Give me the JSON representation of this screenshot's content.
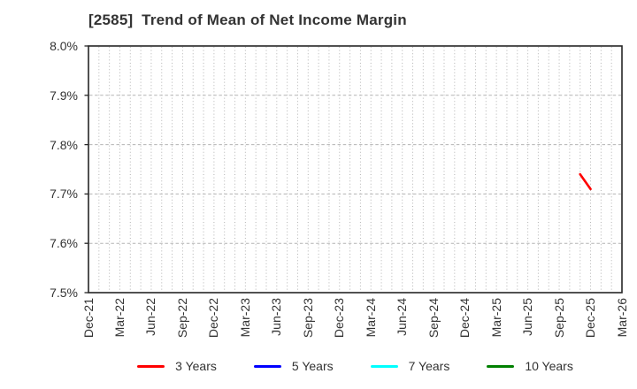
{
  "chart": {
    "title": "[2585]  Trend of Mean of Net Income Margin"
  },
  "colors": {
    "title_text": "#333333",
    "axis_border": "#262626",
    "tick_text": "#333333",
    "grid": "#b3b3b3",
    "background": "#ffffff",
    "series_red": "#ff0000",
    "series_blue": "#0000ff",
    "series_cyan": "#00ffff",
    "series_green": "#008000"
  },
  "chart_data": {
    "type": "line",
    "title": "[2585]  Trend of Mean of Net Income Margin",
    "xlabel": "",
    "ylabel": "",
    "ylim": [
      7.5,
      8.0
    ],
    "y_ticks": [
      {
        "value": 8.0,
        "label": "8.0%"
      },
      {
        "value": 7.9,
        "label": "7.9%"
      },
      {
        "value": 7.8,
        "label": "7.8%"
      },
      {
        "value": 7.7,
        "label": "7.7%"
      },
      {
        "value": 7.6,
        "label": "7.6%"
      },
      {
        "value": 7.5,
        "label": "7.5%"
      }
    ],
    "x_axis": {
      "unit": "month",
      "months_total": 51,
      "tick_labels": [
        {
          "month_index": 0,
          "label": "Dec-21"
        },
        {
          "month_index": 3,
          "label": "Mar-22"
        },
        {
          "month_index": 6,
          "label": "Jun-22"
        },
        {
          "month_index": 9,
          "label": "Sep-22"
        },
        {
          "month_index": 12,
          "label": "Dec-22"
        },
        {
          "month_index": 15,
          "label": "Mar-23"
        },
        {
          "month_index": 18,
          "label": "Jun-23"
        },
        {
          "month_index": 21,
          "label": "Sep-23"
        },
        {
          "month_index": 24,
          "label": "Dec-23"
        },
        {
          "month_index": 27,
          "label": "Mar-24"
        },
        {
          "month_index": 30,
          "label": "Jun-24"
        },
        {
          "month_index": 33,
          "label": "Sep-24"
        },
        {
          "month_index": 36,
          "label": "Dec-24"
        },
        {
          "month_index": 39,
          "label": "Mar-25"
        },
        {
          "month_index": 42,
          "label": "Jun-25"
        },
        {
          "month_index": 45,
          "label": "Sep-25"
        },
        {
          "month_index": 48,
          "label": "Dec-25"
        },
        {
          "month_index": 51,
          "label": "Mar-26"
        }
      ]
    },
    "grid": {
      "vertical": "dotted-monthly",
      "horizontal": "dashed-per-0.1"
    },
    "legend_position": "bottom-center",
    "series": [
      {
        "name": "3 Years",
        "color": "#ff0000",
        "points": [
          {
            "x_label": "Nov-25",
            "month_index": 47,
            "value": 7.74
          },
          {
            "x_label": "Dec-25",
            "month_index": 48,
            "value": 7.71
          }
        ]
      },
      {
        "name": "5 Years",
        "color": "#0000ff",
        "points": []
      },
      {
        "name": "7 Years",
        "color": "#00ffff",
        "points": []
      },
      {
        "name": "10 Years",
        "color": "#008000",
        "points": []
      }
    ]
  }
}
